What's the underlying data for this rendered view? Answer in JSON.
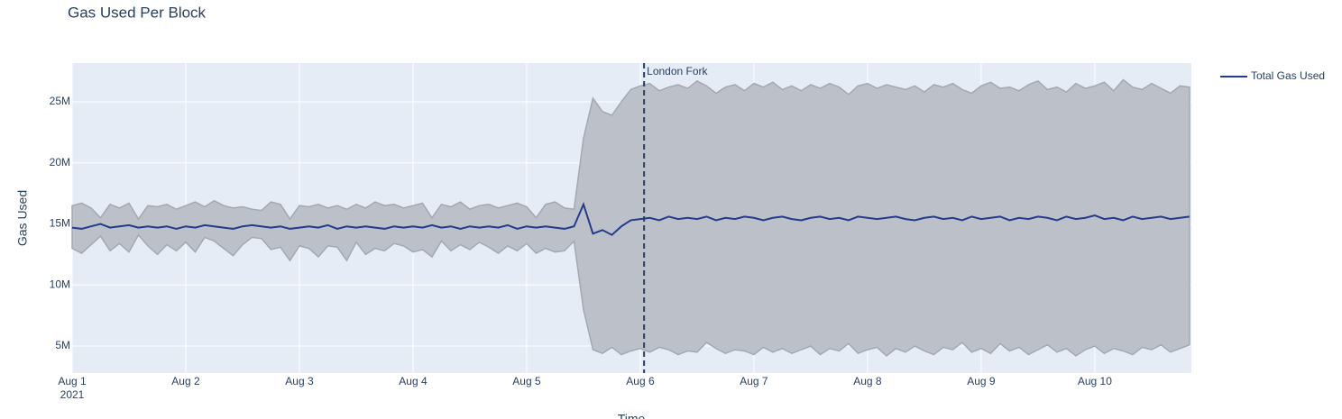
{
  "chart_data": {
    "type": "line",
    "title": "Gas Used Per Block",
    "x_label": "Time",
    "y_label": "Gas Used",
    "x": [
      0,
      2,
      4,
      6,
      8,
      10,
      12,
      14,
      16,
      18,
      20,
      22,
      24,
      26,
      28,
      30,
      32,
      34,
      36,
      38,
      40,
      42,
      44,
      46,
      48,
      50,
      52,
      54,
      56,
      58,
      60,
      62,
      64,
      66,
      68,
      70,
      72,
      74,
      76,
      78,
      80,
      82,
      84,
      86,
      88,
      90,
      92,
      94,
      96,
      98,
      100,
      102,
      104,
      106,
      108,
      110,
      112,
      114,
      116,
      118,
      120,
      122,
      124,
      126,
      128,
      130,
      132,
      134,
      136,
      138,
      140,
      142,
      144,
      146,
      148,
      150,
      152,
      154,
      156,
      158,
      160,
      162,
      164,
      166,
      168,
      170,
      172,
      174,
      176,
      178,
      180,
      182,
      184,
      186,
      188,
      190,
      192,
      194,
      196,
      198,
      200,
      202,
      204,
      206,
      208,
      210,
      212,
      214,
      216,
      218,
      220,
      222,
      224,
      226,
      228,
      230,
      232,
      234,
      236
    ],
    "xlim": [
      0,
      236.4
    ],
    "xticks": [
      {
        "value": 0,
        "label": "Aug 1"
      },
      {
        "value": 24,
        "label": "Aug 2"
      },
      {
        "value": 48,
        "label": "Aug 3"
      },
      {
        "value": 72,
        "label": "Aug 4"
      },
      {
        "value": 96,
        "label": "Aug 5"
      },
      {
        "value": 120,
        "label": "Aug 6"
      },
      {
        "value": 144,
        "label": "Aug 7"
      },
      {
        "value": 168,
        "label": "Aug 8"
      },
      {
        "value": 192,
        "label": "Aug 9"
      },
      {
        "value": 216,
        "label": "Aug 10"
      }
    ],
    "x_year_label": "2021",
    "ylim": [
      2790000,
      28170000
    ],
    "yticks": [
      {
        "value": 5000000,
        "label": "5M"
      },
      {
        "value": 10000000,
        "label": "10M"
      },
      {
        "value": 15000000,
        "label": "15M"
      },
      {
        "value": 20000000,
        "label": "20M"
      },
      {
        "value": 25000000,
        "label": "25M"
      }
    ],
    "grid": true,
    "legend_position": "right",
    "band_color": "#bcc1c9",
    "band_upper": [
      16500000,
      16700000,
      16300000,
      15500000,
      16600000,
      16300000,
      16700000,
      15400000,
      16500000,
      16400000,
      16600000,
      16200000,
      16500000,
      16800000,
      16400000,
      16900000,
      16500000,
      16300000,
      16400000,
      16200000,
      16100000,
      16800000,
      16600000,
      15400000,
      16500000,
      16400000,
      16600000,
      16300000,
      16500000,
      16200000,
      16600000,
      16300000,
      16800000,
      16500000,
      16600000,
      16300000,
      16500000,
      16700000,
      15500000,
      16600000,
      16400000,
      16800000,
      16200000,
      16500000,
      16600000,
      16300000,
      16500000,
      16700000,
      16400000,
      15500000,
      16600000,
      16800000,
      16300000,
      16200000,
      22000000,
      25300000,
      24200000,
      23900000,
      25000000,
      26000000,
      26300000,
      26500000,
      25900000,
      26200000,
      26400000,
      26100000,
      26700000,
      26300000,
      25700000,
      26200000,
      26400000,
      25900000,
      26500000,
      26200000,
      26600000,
      26000000,
      26300000,
      25900000,
      26400000,
      26100000,
      26500000,
      26200000,
      25600000,
      26300000,
      26500000,
      26100000,
      26400000,
      26200000,
      26000000,
      26300000,
      25800000,
      26400000,
      26200000,
      26500000,
      26000000,
      25700000,
      26300000,
      26600000,
      26100000,
      26200000,
      25900000,
      26400000,
      26700000,
      26000000,
      26200000,
      25800000,
      26500000,
      26100000,
      26300000,
      26600000,
      25900000,
      26800000,
      26200000,
      26000000,
      26500000,
      26100000,
      25700000,
      26300000,
      26200000
    ],
    "band_lower": [
      13000000,
      12600000,
      13300000,
      14000000,
      12800000,
      13400000,
      12700000,
      14100000,
      13200000,
      12500000,
      13300000,
      12800000,
      13500000,
      12700000,
      13900000,
      13600000,
      13000000,
      12400000,
      13300000,
      13900000,
      13800000,
      12900000,
      13100000,
      12000000,
      13200000,
      13000000,
      12300000,
      13200000,
      13100000,
      12000000,
      13500000,
      12500000,
      13000000,
      12800000,
      13400000,
      13200000,
      12700000,
      12900000,
      12300000,
      13600000,
      12800000,
      13300000,
      12900000,
      13500000,
      13100000,
      12600000,
      13200000,
      12800000,
      13400000,
      12600000,
      13000000,
      12700000,
      12800000,
      13600000,
      8000000,
      4700000,
      4400000,
      4900000,
      4300000,
      4600000,
      4800000,
      4500000,
      4900000,
      4700000,
      4300000,
      4600000,
      4500000,
      5300000,
      4800000,
      4400000,
      4700000,
      4600000,
      4300000,
      4900000,
      4500000,
      4800000,
      4400000,
      4700000,
      5000000,
      4300000,
      4800000,
      4600000,
      5200000,
      4400000,
      4700000,
      4900000,
      4200000,
      4800000,
      4500000,
      5000000,
      4600000,
      4300000,
      4900000,
      4700000,
      5300000,
      4500000,
      4800000,
      4400000,
      5200000,
      4600000,
      4900000,
      4300000,
      4700000,
      5100000,
      4500000,
      4800000,
      4200000,
      4700000,
      5000000,
      4400000,
      4800000,
      4600000,
      4300000,
      4900000,
      4700000,
      5100000,
      4500000,
      4800000,
      5100000
    ],
    "series": [
      {
        "name": "Total Gas Used",
        "color": "#233b8c",
        "values": [
          14700000,
          14600000,
          14800000,
          15000000,
          14700000,
          14800000,
          14900000,
          14700000,
          14800000,
          14700000,
          14800000,
          14600000,
          14800000,
          14700000,
          14900000,
          14800000,
          14700000,
          14600000,
          14800000,
          14900000,
          14800000,
          14700000,
          14800000,
          14600000,
          14700000,
          14800000,
          14700000,
          14900000,
          14600000,
          14800000,
          14700000,
          14800000,
          14700000,
          14600000,
          14800000,
          14700000,
          14800000,
          14700000,
          14900000,
          14700000,
          14800000,
          14600000,
          14800000,
          14700000,
          14800000,
          14700000,
          14900000,
          14600000,
          14800000,
          14700000,
          14800000,
          14700000,
          14600000,
          14800000,
          16600000,
          14200000,
          14500000,
          14100000,
          14800000,
          15300000,
          15400000,
          15500000,
          15300000,
          15600000,
          15400000,
          15500000,
          15400000,
          15600000,
          15300000,
          15500000,
          15400000,
          15600000,
          15500000,
          15300000,
          15500000,
          15600000,
          15400000,
          15300000,
          15500000,
          15600000,
          15400000,
          15500000,
          15300000,
          15600000,
          15500000,
          15400000,
          15500000,
          15600000,
          15400000,
          15300000,
          15500000,
          15600000,
          15400000,
          15500000,
          15300000,
          15600000,
          15400000,
          15500000,
          15600000,
          15300000,
          15500000,
          15400000,
          15600000,
          15500000,
          15300000,
          15600000,
          15400000,
          15500000,
          15700000,
          15400000,
          15500000,
          15300000,
          15600000,
          15400000,
          15500000,
          15600000,
          15400000,
          15500000,
          15600000
        ]
      }
    ],
    "annotations": [
      {
        "x": 120.8,
        "text": "London Fork"
      }
    ]
  }
}
